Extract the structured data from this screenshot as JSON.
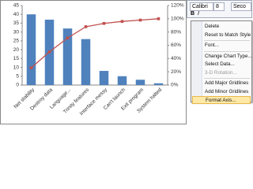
{
  "chart_data": {
    "type": "pareto",
    "categories": [
      "Net stability",
      "Destroy data",
      "Language...",
      "Trinity features",
      "Interface messy",
      "Can't launch",
      "Exit program",
      "System halted"
    ],
    "series": [
      {
        "type": "bar",
        "color": "#4f81bd",
        "values": [
          40,
          37,
          32,
          26,
          8,
          5,
          3,
          1
        ]
      },
      {
        "type": "line",
        "axis": "y2",
        "color": "#c0504d",
        "values": [
          26,
          50,
          71,
          88,
          93,
          96,
          98,
          100
        ]
      }
    ],
    "ylim": [
      0,
      45
    ],
    "yticks": [
      0,
      5,
      10,
      15,
      20,
      25,
      30,
      35,
      40,
      45
    ],
    "y2lim": [
      0,
      120
    ],
    "y2ticks": [
      {
        "value": 0,
        "label": "0%"
      },
      {
        "value": 20,
        "label": "20%"
      },
      {
        "value": 40,
        "label": "40%"
      },
      {
        "value": 60,
        "label": "60%"
      },
      {
        "value": 80,
        "label": "80%"
      },
      {
        "value": 100,
        "label": "100%"
      },
      {
        "value": 120,
        "label": "120%"
      }
    ],
    "grid": false
  },
  "toolbar": {
    "font": "Calibri",
    "size": "8",
    "bold": "B",
    "italic": "I",
    "axis_select": "Seco"
  },
  "context_menu": {
    "items": [
      {
        "label": "Delete",
        "enabled": true
      },
      {
        "label": "Reset to Match Style",
        "enabled": true
      },
      {
        "label": "Font...",
        "enabled": true
      },
      {
        "label": "Change Chart Type...",
        "enabled": true
      },
      {
        "label": "Select Data...",
        "enabled": true
      },
      {
        "label": "3-D Rotation...",
        "enabled": false
      },
      {
        "label": "Add Major Gridlines",
        "enabled": true
      },
      {
        "label": "Add Minor Gridlines",
        "enabled": true
      },
      {
        "label": "Format Axis...",
        "enabled": true,
        "highlighted": true
      }
    ]
  }
}
